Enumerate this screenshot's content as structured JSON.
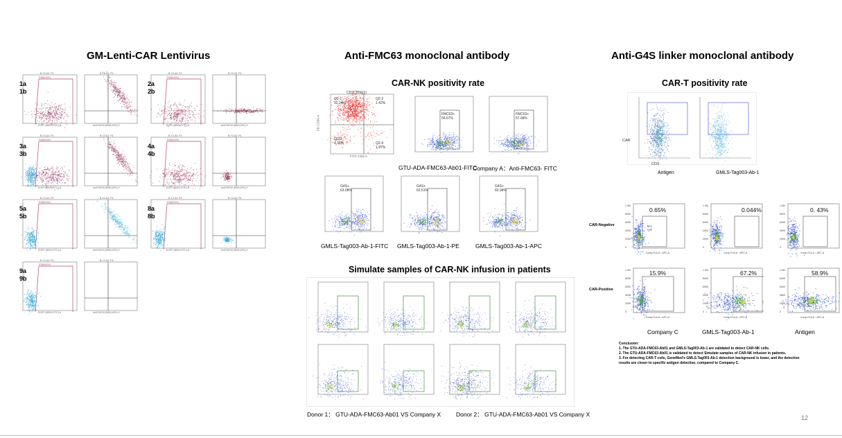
{
  "headings": {
    "left": "GM-Lenti-CAR Lentivirus",
    "middle": "Anti-FMC63 monoclonal antibody",
    "right": "Anti-G4S linker monoclonal antibody"
  },
  "left_panel": {
    "plots": [
      {
        "label_a": "1a",
        "label_b": "1b"
      },
      {
        "label_a": "2a",
        "label_b": "2b"
      },
      {
        "label_a": "3a",
        "label_b": "3b"
      },
      {
        "label_a": "4a",
        "label_b": "4b"
      },
      {
        "label_a": "5a",
        "label_b": "5b"
      },
      {
        "label_a": "8a",
        "label_b": "8b"
      },
      {
        "label_a": "9a",
        "label_b": "9b"
      }
    ]
  },
  "middle_panel": {
    "subtitle_top": "CAR-NK positivity rate",
    "top_plot": {
      "title": "CD3CD56(1)",
      "quadrants": [
        "Q2-1\n92.24%",
        "Q2-2\n1.42%",
        "Q2-3\n4.38%",
        "Q2-4\n1.97%"
      ],
      "xaxis": "FITC-CD3-A",
      "yaxis": "PE-CD56-A"
    },
    "fmc_plots": [
      {
        "gate": "FMC63+\n56.67%",
        "caption": "GTU-ADA-FMC63-Ab01-FITC"
      },
      {
        "gate": "FMC63+\n57.68%",
        "caption": "Company A：Anti-FMC63- FITC"
      }
    ],
    "g4s_plots": [
      {
        "gate": "G4S+\n63.08%",
        "caption": "GMLS-Tag003-Ab-1-FITC"
      },
      {
        "gate": "G4S+\n62.51%",
        "caption": "GMLS-Tag003-Ab-1-PE"
      },
      {
        "gate": "G4S+\n60.94%",
        "caption": "GMLS-Tag003-Ab-1-APC"
      }
    ],
    "subtitle_bottom": "Simulate samples of CAR-NK infusion in patients",
    "donor_captions": [
      "Donor 1： GTU-ADA-FMC63-Ab01 VS Company X",
      "Donor 2： GTU-ADA-FMC63-Ab01 VS Company X"
    ]
  },
  "right_panel": {
    "subtitle": "CAR-T positivity rate",
    "cart_plots": [
      {
        "caption": "Antigen"
      },
      {
        "caption": "GMLS-Tag003-Ab-1"
      }
    ],
    "cart_axis_y": "CAR",
    "cart_axis_x": "CD3",
    "row_labels": [
      "CAR-Negative",
      "CAR-Positive"
    ],
    "negative_pcts": [
      "0.65%",
      "0.044%",
      "0. 43%"
    ],
    "positive_pcts": [
      "15.9%",
      "67.2%",
      "58.9%"
    ],
    "apc_label": "APC\n0.65",
    "column_captions": [
      "Company C",
      "GMLS-Tag003-Ab-1",
      "Antigen"
    ],
    "conclusion_title": "Conclusion:",
    "conclusion_items": [
      "1.        The GTU-ADA-FMC63-Ab01 and GMLS-Tag003-Ab-1 are validated to detect CAR-NK cells.",
      "2.        The GTU-ADA-FMC63-Ab01 is validated to detect Simulate samples of CAR-NK infusion in patients.",
      "3.        For detecting CAR-T cells, GeneMed’s GMLS-Tag003-Ab-1 detection background is lower, and the detection",
      "           results are closer to specific antigen detection, compared to Company C."
    ]
  },
  "page_number": "12",
  "colors": {
    "maroon": "#8a1d4d",
    "cyan": "#2aa6d6",
    "red": "#e0201c",
    "blue": "#2544c9",
    "green": "#2f9e2f",
    "yellow": "#e8d43a"
  }
}
